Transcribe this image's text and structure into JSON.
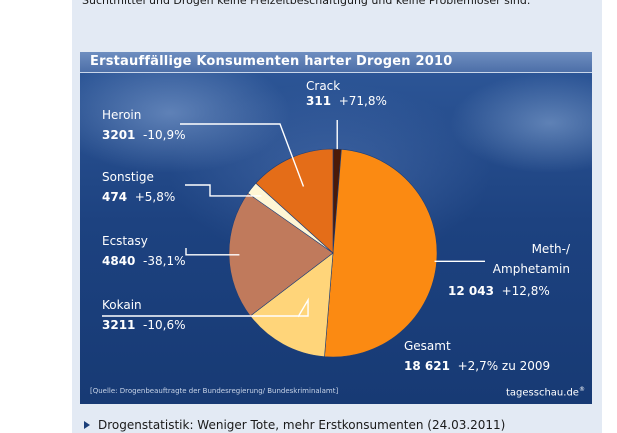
{
  "quote_text": "Suchtmittel und Drogen keine Freizeitbeschäftigung und keine Problemlöser sind.\"",
  "footer_link": "Drogenstatistik: Weniger Tote, mehr Erstkonsumenten (24.03.2011)",
  "colors": {
    "background": "#1b3f7a",
    "Meth-/ Amphetamin": "#fb8a12",
    "Kokain": "#ffd57a",
    "Ecstasy": "#c07a5c",
    "Sonstige": "#fff6d5",
    "Heroin": "#e46d18",
    "Crack": "#4a1a08"
  },
  "chart_data": {
    "type": "pie",
    "title": "Erstauffällige Konsumenten harter Drogen 2010",
    "source": "[Quelle: Drogenbeauftragte der Bundesregierung/ Bundeskriminalamt]",
    "brand": "tagesschau.de",
    "brand_mark": "®",
    "slices": [
      {
        "label": "Crack",
        "value": 311,
        "display_value": "311",
        "change": "+71,8%"
      },
      {
        "label": "Meth-/ Amphetamin",
        "label_line1": "Meth-/",
        "label_line2": "Amphetamin",
        "value": 12043,
        "display_value": "12 043",
        "change": "+12,8%"
      },
      {
        "label": "Kokain",
        "value": 3211,
        "display_value": "3211",
        "change": "-10,6%"
      },
      {
        "label": "Ecstasy",
        "value": 4840,
        "display_value": "4840",
        "change": "-38,1%"
      },
      {
        "label": "Sonstige",
        "value": 474,
        "display_value": "474",
        "change": "+5,8%"
      },
      {
        "label": "Heroin",
        "value": 3201,
        "display_value": "3201",
        "change": "-10,9%"
      }
    ],
    "total": {
      "label": "Gesamt",
      "value": 18621,
      "display_value": "18 621",
      "change": "+2,7% zu 2009"
    }
  }
}
